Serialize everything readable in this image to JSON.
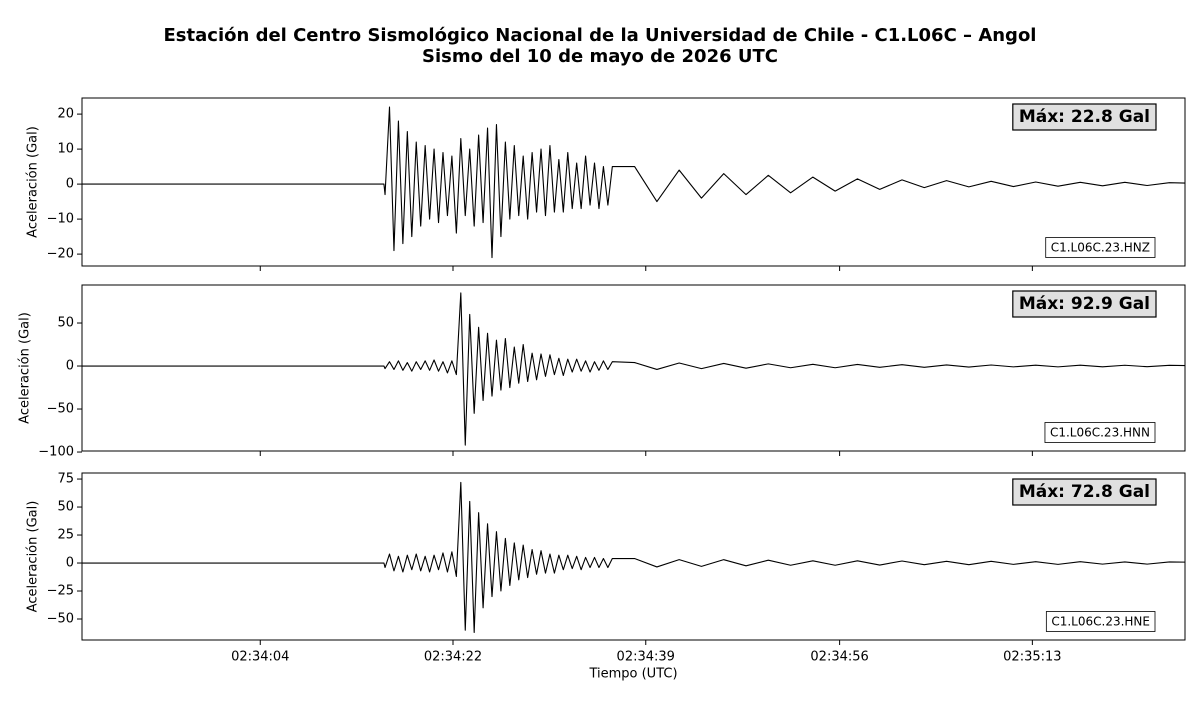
{
  "chart_data": [
    {
      "type": "line",
      "title": "Estación del Centro Sismológico Nacional de la Universidad de Chile - C1.L06C – Angol",
      "subtitle": "Sismo del 10 de mayo de 2026 UTC",
      "ylabel": "Aceleración (Gal)",
      "annotation": "Máx: 22.8 Gal",
      "xlim": [
        9228.4,
        9327.4
      ],
      "ylim": [
        -23.4,
        24.6
      ],
      "yticks": [
        {
          "value": -20,
          "label": "−20"
        },
        {
          "value": -10,
          "label": "−10"
        },
        0,
        10,
        20
      ],
      "x": [
        9228.4,
        9255.5,
        9255.6,
        9256,
        9256.4,
        9256.8,
        9257.2,
        9257.6,
        9258,
        9258.4,
        9258.8,
        9259.2,
        9259.6,
        9260,
        9260.4,
        9260.8,
        9261.2,
        9261.6,
        9262,
        9262.4,
        9262.8,
        9263.2,
        9263.6,
        9264,
        9264.4,
        9264.8,
        9265.2,
        9265.6,
        9266,
        9266.4,
        9266.8,
        9267.2,
        9267.6,
        9268,
        9268.4,
        9268.8,
        9269.2,
        9269.6,
        9270,
        9270.4,
        9270.8,
        9271.2,
        9271.6,
        9272,
        9272.4,
        9272.8,
        9273.2,
        9273.6,
        9274,
        9274.4,
        9274.8,
        9275.2,
        9275.6,
        9276,
        9278,
        9280,
        9282,
        9284,
        9286,
        9288,
        9290,
        9292,
        9294,
        9296,
        9298,
        9300,
        9302,
        9304,
        9306,
        9308,
        9310,
        9312,
        9314,
        9316,
        9318,
        9320,
        9322,
        9324,
        9326,
        9327.4
      ],
      "series": [
        {
          "name": "C1.L06C.23.HNZ",
          "color": "#000000",
          "values": [
            0,
            0,
            -3,
            22,
            -19,
            18,
            -17,
            15,
            -15,
            12,
            -12,
            11,
            -10,
            10,
            -11,
            9,
            -9,
            8,
            -14,
            13,
            -9,
            10,
            -12,
            14,
            -11,
            16,
            -21,
            17,
            -15,
            12,
            -10,
            11,
            -9,
            8,
            -10,
            9,
            -8,
            10,
            -9,
            11,
            -8,
            7,
            -8,
            9,
            -7,
            6,
            -7,
            8,
            -6,
            6,
            -7,
            5,
            -6,
            5,
            5,
            -5,
            4,
            -4,
            3,
            -3,
            2.5,
            -2.5,
            2,
            -2,
            1.5,
            -1.5,
            1.2,
            -1,
            1,
            -0.8,
            0.8,
            -0.7,
            0.6,
            -0.6,
            0.5,
            -0.5,
            0.5,
            -0.4,
            0.4,
            0.3
          ]
        }
      ]
    },
    {
      "type": "line",
      "ylabel": "Aceleración (Gal)",
      "annotation": "Máx: 92.9 Gal",
      "xlim": [
        9228.4,
        9327.4
      ],
      "ylim": [
        -98.8,
        94.2
      ],
      "yticks": [
        {
          "value": -100,
          "label": "−100"
        },
        {
          "value": -50,
          "label": "−50"
        },
        0,
        50
      ],
      "x": [
        9228.4,
        9255.5,
        9255.6,
        9256,
        9256.4,
        9256.8,
        9257.2,
        9257.6,
        9258,
        9258.4,
        9258.8,
        9259.2,
        9259.6,
        9260,
        9260.4,
        9260.8,
        9261.2,
        9261.6,
        9262,
        9262.4,
        9262.8,
        9263.2,
        9263.6,
        9264,
        9264.4,
        9264.8,
        9265.2,
        9265.6,
        9266,
        9266.4,
        9266.8,
        9267.2,
        9267.6,
        9268,
        9268.4,
        9268.8,
        9269.2,
        9269.6,
        9270,
        9270.4,
        9270.8,
        9271.2,
        9271.6,
        9272,
        9272.4,
        9272.8,
        9273.2,
        9273.6,
        9274,
        9274.4,
        9274.8,
        9275.2,
        9275.6,
        9276,
        9278,
        9280,
        9282,
        9284,
        9286,
        9288,
        9290,
        9292,
        9294,
        9296,
        9298,
        9300,
        9302,
        9304,
        9306,
        9308,
        9310,
        9312,
        9314,
        9316,
        9318,
        9320,
        9322,
        9324,
        9326,
        9327.4
      ],
      "series": [
        {
          "name": "C1.L06C.23.HNN",
          "color": "#000000",
          "values": [
            0,
            0,
            -3,
            5,
            -4,
            6,
            -5,
            4,
            -6,
            5,
            -4,
            6,
            -5,
            7,
            -6,
            5,
            -8,
            6,
            -10,
            85,
            -92,
            60,
            -55,
            45,
            -40,
            38,
            -35,
            30,
            -28,
            32,
            -25,
            22,
            -20,
            25,
            -18,
            15,
            -16,
            14,
            -12,
            13,
            -10,
            9,
            -11,
            8,
            -7,
            8,
            -6,
            6,
            -7,
            5,
            -5,
            6,
            -4,
            5,
            4,
            -4,
            3.5,
            -3,
            3,
            -2.5,
            2.5,
            -2,
            2,
            -2,
            1.8,
            -1.5,
            1.5,
            -1.5,
            1.3,
            -1.2,
            1.2,
            -1,
            1,
            -1,
            1,
            -0.9,
            0.9,
            -0.8,
            0.8,
            0.5
          ]
        }
      ]
    },
    {
      "type": "line",
      "ylabel": "Aceleración (Gal)",
      "annotation": "Máx: 72.8 Gal",
      "xlabel": "Tiempo (UTC)",
      "xlim": [
        9228.4,
        9327.4
      ],
      "ylim": [
        -68.75,
        80.4
      ],
      "xticks": [
        {
          "value": 9244.4,
          "label": "02:34:04"
        },
        {
          "value": 9261.7,
          "label": "02:34:22"
        },
        {
          "value": 9279.0,
          "label": "02:34:39"
        },
        {
          "value": 9296.4,
          "label": "02:34:56"
        },
        {
          "value": 9313.7,
          "label": "02:35:13"
        }
      ],
      "yticks": [
        {
          "value": -50,
          "label": "−50"
        },
        {
          "value": -25,
          "label": "−25"
        },
        0,
        25,
        50,
        75
      ],
      "x": [
        9228.4,
        9255.5,
        9255.6,
        9256,
        9256.4,
        9256.8,
        9257.2,
        9257.6,
        9258,
        9258.4,
        9258.8,
        9259.2,
        9259.6,
        9260,
        9260.4,
        9260.8,
        9261.2,
        9261.6,
        9262,
        9262.4,
        9262.8,
        9263.2,
        9263.6,
        9264,
        9264.4,
        9264.8,
        9265.2,
        9265.6,
        9266,
        9266.4,
        9266.8,
        9267.2,
        9267.6,
        9268,
        9268.4,
        9268.8,
        9269.2,
        9269.6,
        9270,
        9270.4,
        9270.8,
        9271.2,
        9271.6,
        9272,
        9272.4,
        9272.8,
        9273.2,
        9273.6,
        9274,
        9274.4,
        9274.8,
        9275.2,
        9275.6,
        9276,
        9278,
        9280,
        9282,
        9284,
        9286,
        9288,
        9290,
        9292,
        9294,
        9296,
        9298,
        9300,
        9302,
        9304,
        9306,
        9308,
        9310,
        9312,
        9314,
        9316,
        9318,
        9320,
        9322,
        9324,
        9326,
        9327.4
      ],
      "series": [
        {
          "name": "C1.L06C.23.HNE",
          "color": "#000000",
          "values": [
            0,
            0,
            -4,
            8,
            -7,
            6,
            -8,
            7,
            -6,
            8,
            -7,
            6,
            -8,
            7,
            -6,
            9,
            -8,
            10,
            -12,
            72,
            -60,
            55,
            -62,
            45,
            -40,
            35,
            -30,
            28,
            -25,
            22,
            -20,
            18,
            -15,
            16,
            -13,
            12,
            -10,
            11,
            -9,
            8,
            -9,
            7,
            -6,
            7,
            -5,
            6,
            -6,
            5,
            -4,
            5,
            -4,
            4,
            -4,
            4,
            4,
            -3.5,
            3,
            -3,
            3,
            -2.5,
            2.5,
            -2,
            2,
            -2,
            2,
            -1.8,
            1.8,
            -1.5,
            1.5,
            -1.5,
            1.5,
            -1.2,
            1.2,
            -1.2,
            1.2,
            -1,
            1,
            -1,
            1,
            0.8
          ]
        }
      ]
    }
  ]
}
